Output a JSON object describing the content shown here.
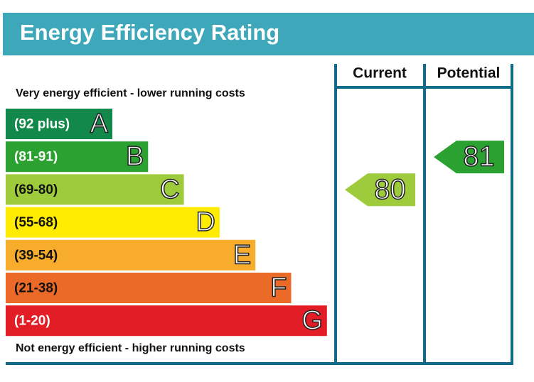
{
  "header": {
    "title": "Energy Efficiency Rating"
  },
  "top_note": "Very energy efficient - lower running costs",
  "bottom_note": "Not energy efficient - higher running costs",
  "columns": [
    "Current",
    "Potential"
  ],
  "bands": [
    {
      "range": "(92 plus)",
      "letter": "A",
      "color": "#12894a"
    },
    {
      "range": "(81-91)",
      "letter": "B",
      "color": "#2ba131"
    },
    {
      "range": "(69-80)",
      "letter": "C",
      "color": "#9dcb3c"
    },
    {
      "range": "(55-68)",
      "letter": "D",
      "color": "#ffec00"
    },
    {
      "range": "(39-54)",
      "letter": "E",
      "color": "#f7ad2b"
    },
    {
      "range": "(21-38)",
      "letter": "F",
      "color": "#ec6a28"
    },
    {
      "range": "(1-20)",
      "letter": "G",
      "color": "#e31d25"
    }
  ],
  "current": {
    "value": 80,
    "color": "#9dcb3c"
  },
  "potential": {
    "value": 81,
    "color": "#2ba131"
  }
}
